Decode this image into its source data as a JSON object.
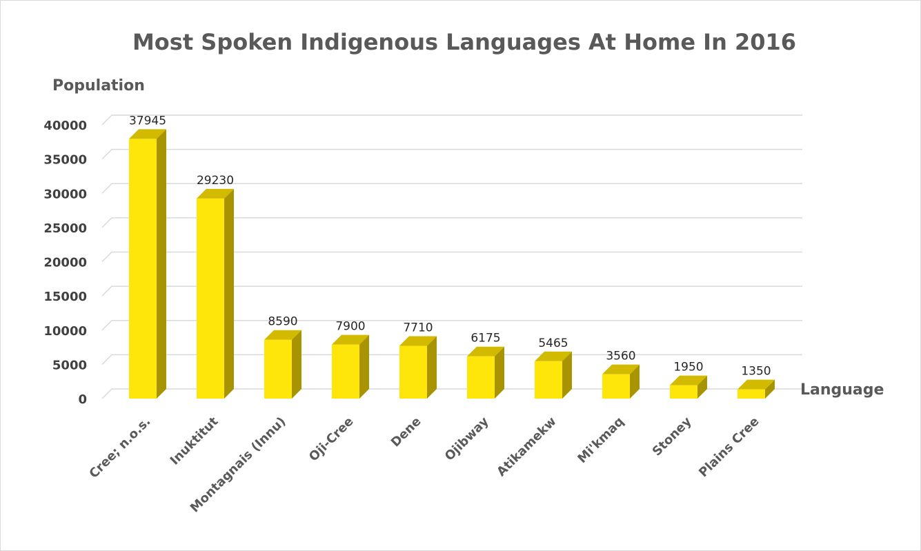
{
  "chart_data": {
    "type": "bar",
    "title": "Most Spoken Indigenous Languages At Home In 2016",
    "xlabel": "Language",
    "ylabel": "Population",
    "categories": [
      "Cree; n.o.s.",
      "Inuktitut",
      "Montagnais (Innu)",
      "Oji-Cree",
      "Dene",
      "Ojibway",
      "Atikamekw",
      "Mi'kmaq",
      "Stoney",
      "Plains Cree"
    ],
    "values": [
      37945,
      29230,
      8590,
      7900,
      7710,
      6175,
      5465,
      3560,
      1950,
      1350
    ],
    "ylim": [
      0,
      40000
    ],
    "yticks": [
      0,
      5000,
      10000,
      15000,
      20000,
      25000,
      30000,
      35000,
      40000
    ],
    "grid": true,
    "legend": "none",
    "colors": {
      "bar_front": "#ffe60a",
      "bar_side": "#a89400",
      "bar_top": "#d1ba00",
      "grid": "#d9d9d9"
    }
  }
}
